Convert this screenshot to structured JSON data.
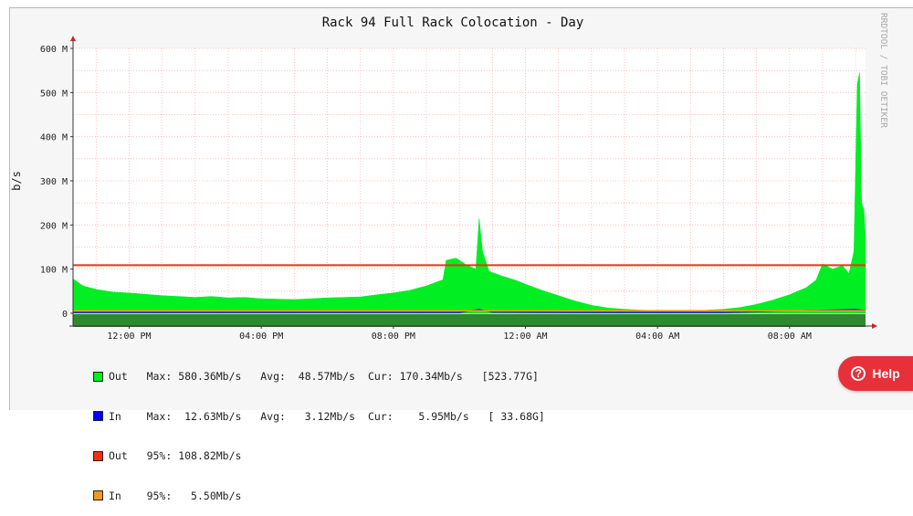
{
  "chart_data": {
    "type": "area",
    "title": "Rack 94 Full Rack Colocation - Day",
    "ylabel": "b/s",
    "watermark": "RRDTOOL / TOBI OETIKER",
    "ylim": [
      0,
      600
    ],
    "y_unit": "M",
    "y_ticks": [
      {
        "value": 0,
        "label": "0"
      },
      {
        "value": 100,
        "label": "100 M"
      },
      {
        "value": 200,
        "label": "200 M"
      },
      {
        "value": 300,
        "label": "300 M"
      },
      {
        "value": 400,
        "label": "400 M"
      },
      {
        "value": 500,
        "label": "500 M"
      },
      {
        "value": 600,
        "label": "600 M"
      }
    ],
    "x_ticks": [
      {
        "value": 0,
        "label": "12:00 PM"
      },
      {
        "value": 4,
        "label": "04:00 PM"
      },
      {
        "value": 8,
        "label": "08:00 PM"
      },
      {
        "value": 12,
        "label": "12:00 AM"
      },
      {
        "value": 16,
        "label": "04:00 AM"
      },
      {
        "value": 20,
        "label": "08:00 AM"
      }
    ],
    "xlim": [
      -1.7,
      22.3
    ],
    "x_unit": "hours after 12:00 PM",
    "series": [
      {
        "name": "Out",
        "color": "#00ee22",
        "values": [
          [
            -1.7,
            78
          ],
          [
            -1.4,
            62
          ],
          [
            -1.0,
            54
          ],
          [
            -0.5,
            48
          ],
          [
            0.0,
            46
          ],
          [
            0.5,
            43
          ],
          [
            1.0,
            40
          ],
          [
            1.5,
            38
          ],
          [
            2.0,
            36
          ],
          [
            2.5,
            38
          ],
          [
            3.0,
            35
          ],
          [
            3.5,
            36
          ],
          [
            4.0,
            33
          ],
          [
            4.5,
            32
          ],
          [
            5.0,
            31
          ],
          [
            5.5,
            33
          ],
          [
            6.0,
            35
          ],
          [
            6.5,
            36
          ],
          [
            7.0,
            37
          ],
          [
            7.5,
            42
          ],
          [
            8.0,
            46
          ],
          [
            8.5,
            52
          ],
          [
            9.0,
            62
          ],
          [
            9.5,
            76
          ],
          [
            9.6,
            120
          ],
          [
            9.9,
            125
          ],
          [
            10.2,
            110
          ],
          [
            10.5,
            100
          ],
          [
            10.6,
            215
          ],
          [
            10.7,
            140
          ],
          [
            10.9,
            95
          ],
          [
            11.3,
            84
          ],
          [
            11.7,
            75
          ],
          [
            12.0,
            66
          ],
          [
            12.5,
            52
          ],
          [
            13.0,
            40
          ],
          [
            13.5,
            28
          ],
          [
            14.0,
            18
          ],
          [
            14.5,
            12
          ],
          [
            15.0,
            9
          ],
          [
            15.5,
            7
          ],
          [
            16.0,
            6
          ],
          [
            16.5,
            5
          ],
          [
            17.0,
            5
          ],
          [
            17.5,
            7
          ],
          [
            18.0,
            9
          ],
          [
            18.5,
            13
          ],
          [
            19.0,
            20
          ],
          [
            19.5,
            30
          ],
          [
            20.0,
            42
          ],
          [
            20.5,
            58
          ],
          [
            20.8,
            75
          ],
          [
            21.0,
            112
          ],
          [
            21.3,
            100
          ],
          [
            21.6,
            108
          ],
          [
            21.8,
            90
          ],
          [
            21.95,
            140
          ],
          [
            22.05,
            520
          ],
          [
            22.12,
            545
          ],
          [
            22.18,
            250
          ],
          [
            22.25,
            235
          ],
          [
            22.3,
            170
          ]
        ]
      },
      {
        "name": "In",
        "color": "#0000ff",
        "values": [
          [
            -1.7,
            2
          ],
          [
            2.0,
            2
          ],
          [
            6.0,
            2
          ],
          [
            10.0,
            2
          ],
          [
            10.6,
            8
          ],
          [
            11.0,
            3
          ],
          [
            14.0,
            2
          ],
          [
            18.0,
            2
          ],
          [
            22.0,
            8
          ],
          [
            22.3,
            6
          ]
        ]
      }
    ],
    "percentile_lines": [
      {
        "name": "Out 95%",
        "value": 108.82,
        "color": "#ee3311"
      },
      {
        "name": "In 95%",
        "value": 5.5,
        "color": "#ee9922"
      }
    ],
    "legend": [
      {
        "color": "#00ee22",
        "label": "Out",
        "max": "580.36Mb/s",
        "avg": "48.57Mb/s",
        "cur": "170.34Mb/s",
        "total": "523.77G"
      },
      {
        "color": "#0000ff",
        "label": "In",
        "max": "12.63Mb/s",
        "avg": "3.12Mb/s",
        "cur": "5.95Mb/s",
        "total": "33.68G"
      },
      {
        "color": "#ee3311",
        "label": "Out",
        "pct_label": "95%:",
        "pct_value": "108.82Mb/s"
      },
      {
        "color": "#ee9922",
        "label": "In",
        "pct_label": "95%:",
        "pct_value": "5.50Mb/s"
      }
    ],
    "legend_text": {
      "max": "Max:",
      "avg": "Avg:",
      "cur": "Cur:"
    }
  },
  "help_button": {
    "label": "Help",
    "icon": "question-circle-icon"
  }
}
